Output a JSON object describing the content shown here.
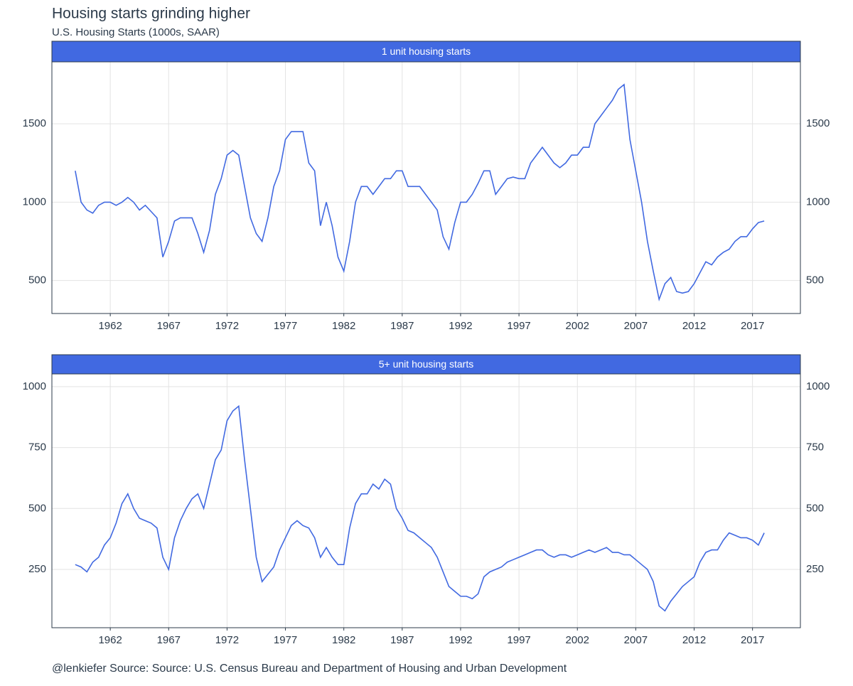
{
  "title": "Housing starts grinding higher",
  "subtitle": "U.S. Housing Starts (1000s, SAAR)",
  "caption": "@lenkiefer Source: Source: U.S. Census Bureau and Department of Housing and Urban Development",
  "chart_data": [
    {
      "type": "line",
      "title": "1 unit housing starts",
      "x": [
        1959,
        1959.5,
        1960,
        1960.5,
        1961,
        1961.5,
        1962,
        1962.5,
        1963,
        1963.5,
        1964,
        1964.5,
        1965,
        1965.5,
        1966,
        1966.5,
        1967,
        1967.5,
        1968,
        1968.5,
        1969,
        1969.5,
        1970,
        1970.5,
        1971,
        1971.5,
        1972,
        1972.5,
        1973,
        1973.5,
        1974,
        1974.5,
        1975,
        1975.5,
        1976,
        1976.5,
        1977,
        1977.5,
        1978,
        1978.5,
        1979,
        1979.5,
        1980,
        1980.5,
        1981,
        1981.5,
        1982,
        1982.5,
        1983,
        1983.5,
        1984,
        1984.5,
        1985,
        1985.5,
        1986,
        1986.5,
        1987,
        1987.5,
        1988,
        1988.5,
        1989,
        1989.5,
        1990,
        1990.5,
        1991,
        1991.5,
        1992,
        1992.5,
        1993,
        1993.5,
        1994,
        1994.5,
        1995,
        1995.5,
        1996,
        1996.5,
        1997,
        1997.5,
        1998,
        1998.5,
        1999,
        1999.5,
        2000,
        2000.5,
        2001,
        2001.5,
        2002,
        2002.5,
        2003,
        2003.5,
        2004,
        2004.5,
        2005,
        2005.5,
        2006,
        2006.5,
        2007,
        2007.5,
        2008,
        2008.5,
        2009,
        2009.5,
        2010,
        2010.5,
        2011,
        2011.5,
        2012,
        2012.5,
        2013,
        2013.5,
        2014,
        2014.5,
        2015,
        2015.5,
        2016,
        2016.5,
        2017,
        2017.5,
        2018
      ],
      "series": [
        {
          "name": "1 unit",
          "color": "#4169e1",
          "values": [
            1200,
            1000,
            950,
            930,
            980,
            1000,
            1000,
            980,
            1000,
            1030,
            1000,
            950,
            980,
            940,
            900,
            650,
            750,
            880,
            900,
            900,
            900,
            800,
            680,
            820,
            1050,
            1150,
            1300,
            1330,
            1300,
            1100,
            900,
            800,
            750,
            900,
            1100,
            1200,
            1400,
            1450,
            1450,
            1450,
            1250,
            1200,
            850,
            1000,
            850,
            650,
            560,
            750,
            1000,
            1100,
            1100,
            1050,
            1100,
            1150,
            1150,
            1200,
            1200,
            1100,
            1100,
            1100,
            1050,
            1000,
            950,
            780,
            700,
            870,
            1000,
            1000,
            1050,
            1120,
            1200,
            1200,
            1050,
            1100,
            1150,
            1160,
            1150,
            1150,
            1250,
            1300,
            1350,
            1300,
            1250,
            1220,
            1250,
            1300,
            1300,
            1350,
            1350,
            1500,
            1550,
            1600,
            1650,
            1720,
            1750,
            1400,
            1200,
            1000,
            750,
            560,
            380,
            480,
            520,
            430,
            420,
            430,
            480,
            550,
            620,
            600,
            650,
            680,
            700,
            750,
            780,
            780,
            830,
            870,
            880
          ]
        }
      ],
      "xlim": [
        1957,
        2021.1
      ],
      "xticks": [
        1962,
        1967,
        1972,
        1977,
        1982,
        1987,
        1992,
        1997,
        2002,
        2007,
        2012,
        2017
      ],
      "ylim": [
        290,
        1895
      ],
      "yticks": [
        500,
        1000,
        1500
      ],
      "grid": true
    },
    {
      "type": "line",
      "title": "5+ unit housing starts",
      "x": [
        1959,
        1959.5,
        1960,
        1960.5,
        1961,
        1961.5,
        1962,
        1962.5,
        1963,
        1963.5,
        1964,
        1964.5,
        1965,
        1965.5,
        1966,
        1966.5,
        1967,
        1967.5,
        1968,
        1968.5,
        1969,
        1969.5,
        1970,
        1970.5,
        1971,
        1971.5,
        1972,
        1972.5,
        1973,
        1973.5,
        1974,
        1974.5,
        1975,
        1975.5,
        1976,
        1976.5,
        1977,
        1977.5,
        1978,
        1978.5,
        1979,
        1979.5,
        1980,
        1980.5,
        1981,
        1981.5,
        1982,
        1982.5,
        1983,
        1983.5,
        1984,
        1984.5,
        1985,
        1985.5,
        1986,
        1986.5,
        1987,
        1987.5,
        1988,
        1988.5,
        1989,
        1989.5,
        1990,
        1990.5,
        1991,
        1991.5,
        1992,
        1992.5,
        1993,
        1993.5,
        1994,
        1994.5,
        1995,
        1995.5,
        1996,
        1996.5,
        1997,
        1997.5,
        1998,
        1998.5,
        1999,
        1999.5,
        2000,
        2000.5,
        2001,
        2001.5,
        2002,
        2002.5,
        2003,
        2003.5,
        2004,
        2004.5,
        2005,
        2005.5,
        2006,
        2006.5,
        2007,
        2007.5,
        2008,
        2008.5,
        2009,
        2009.5,
        2010,
        2010.5,
        2011,
        2011.5,
        2012,
        2012.5,
        2013,
        2013.5,
        2014,
        2014.5,
        2015,
        2015.5,
        2016,
        2016.5,
        2017,
        2017.5,
        2018
      ],
      "series": [
        {
          "name": "5+ units",
          "color": "#4169e1",
          "values": [
            270,
            260,
            240,
            280,
            300,
            350,
            380,
            440,
            520,
            560,
            500,
            460,
            450,
            440,
            420,
            300,
            250,
            380,
            450,
            500,
            540,
            560,
            500,
            600,
            700,
            740,
            860,
            900,
            920,
            700,
            500,
            300,
            200,
            230,
            260,
            330,
            380,
            430,
            450,
            430,
            420,
            380,
            300,
            340,
            300,
            270,
            270,
            420,
            520,
            560,
            560,
            600,
            580,
            620,
            600,
            500,
            460,
            410,
            400,
            380,
            360,
            340,
            300,
            240,
            180,
            160,
            140,
            140,
            130,
            150,
            220,
            240,
            250,
            260,
            280,
            290,
            300,
            310,
            320,
            330,
            330,
            310,
            300,
            310,
            310,
            300,
            310,
            320,
            330,
            320,
            330,
            340,
            320,
            320,
            310,
            310,
            290,
            270,
            250,
            200,
            100,
            80,
            120,
            150,
            180,
            200,
            220,
            280,
            320,
            330,
            330,
            370,
            400,
            390,
            380,
            380,
            370,
            350,
            400
          ]
        }
      ],
      "xlim": [
        1957,
        2021.1
      ],
      "xticks": [
        1962,
        1967,
        1972,
        1977,
        1982,
        1987,
        1992,
        1997,
        2002,
        2007,
        2012,
        2017
      ],
      "ylim": [
        11,
        1052
      ],
      "yticks": [
        250,
        500,
        750,
        1000
      ],
      "grid": true
    }
  ]
}
